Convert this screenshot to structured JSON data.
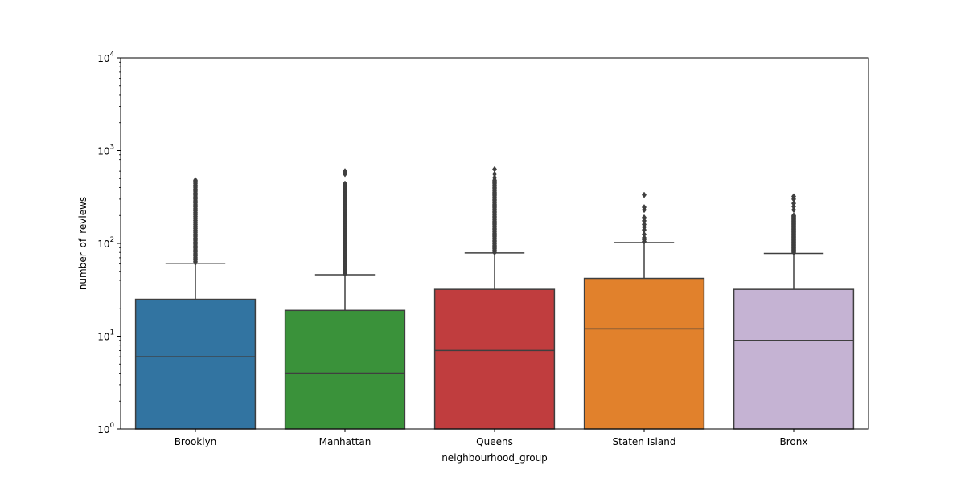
{
  "chart_data": {
    "type": "box",
    "title": "",
    "xlabel": "neighbourhood_group",
    "ylabel": "number_of_reviews",
    "yscale": "log",
    "ylim": [
      1,
      10000
    ],
    "y_ticks": [
      {
        "value": 1,
        "base": "10",
        "exp": "0"
      },
      {
        "value": 10,
        "base": "10",
        "exp": "1"
      },
      {
        "value": 100,
        "base": "10",
        "exp": "2"
      },
      {
        "value": 1000,
        "base": "10",
        "exp": "3"
      },
      {
        "value": 10000,
        "base": "10",
        "exp": "4"
      }
    ],
    "grid": false,
    "categories": [
      "Brooklyn",
      "Manhattan",
      "Queens",
      "Staten Island",
      "Bronx"
    ],
    "colors": [
      "#3274a1",
      "#3a923a",
      "#c03d3e",
      "#e1812c",
      "#c5b3d3"
    ],
    "edge_color": "#3f3f3f",
    "boxes": [
      {
        "q1": 1,
        "median": 6,
        "q3": 25,
        "whisker_low": 1,
        "whisker_high": 61,
        "outliers_min": 62,
        "outliers_max": 470,
        "outlier_extra": [
          480
        ]
      },
      {
        "q1": 1,
        "median": 4,
        "q3": 19,
        "whisker_low": 1,
        "whisker_high": 46,
        "outliers_min": 47,
        "outliers_max": 440,
        "outlier_extra": [
          560,
          590,
          600
        ]
      },
      {
        "q1": 1,
        "median": 7,
        "q3": 32,
        "whisker_low": 1,
        "whisker_high": 79,
        "outliers_min": 80,
        "outliers_max": 480,
        "outlier_extra": [
          510,
          560,
          630
        ]
      },
      {
        "q1": 1,
        "median": 12,
        "q3": 42,
        "whisker_low": 1,
        "whisker_high": 102,
        "outliers_min": 0,
        "outliers_max": 0,
        "outlier_extra": [
          105,
          110,
          115,
          125,
          140,
          150,
          160,
          175,
          190,
          230,
          245,
          333
        ]
      },
      {
        "q1": 1,
        "median": 9,
        "q3": 32,
        "whisker_low": 1,
        "whisker_high": 78,
        "outliers_min": 80,
        "outliers_max": 200,
        "outlier_extra": [
          230,
          250,
          270,
          300,
          321
        ]
      }
    ]
  }
}
